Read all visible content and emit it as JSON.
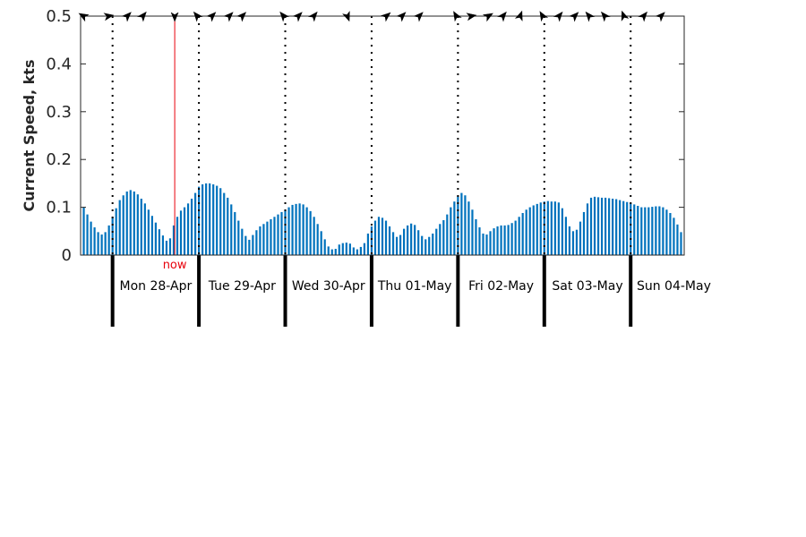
{
  "chart_data": {
    "type": "bar",
    "ylabel": "Current Speed, kts",
    "ylim": [
      0,
      0.5
    ],
    "yticks": [
      "0",
      "0.1",
      "0.2",
      "0.3",
      "0.4",
      "0.5"
    ],
    "bar_color": "#0072bd",
    "now_color": "#e8000b",
    "now_label": "now",
    "now_position_days": 1.72,
    "days": [
      {
        "label": "Mon 28-Apr",
        "start": 1
      },
      {
        "label": "Tue 29-Apr",
        "start": 2
      },
      {
        "label": "Wed 30-Apr",
        "start": 3
      },
      {
        "label": "Thu 01-May",
        "start": 4
      },
      {
        "label": "Fri 02-May",
        "start": 5
      },
      {
        "label": "Sat 03-May",
        "start": 6
      },
      {
        "label": "Sun 04-May",
        "start": 7
      }
    ],
    "x_range_days": [
      0.63,
      7.62
    ],
    "step_hours": 1,
    "start_hours": 15,
    "values": [
      0.113,
      0.1,
      0.085,
      0.07,
      0.058,
      0.048,
      0.043,
      0.048,
      0.062,
      0.08,
      0.098,
      0.115,
      0.125,
      0.133,
      0.136,
      0.133,
      0.127,
      0.118,
      0.108,
      0.095,
      0.082,
      0.068,
      0.054,
      0.041,
      0.03,
      0.035,
      0.062,
      0.08,
      0.093,
      0.1,
      0.108,
      0.118,
      0.13,
      0.143,
      0.148,
      0.15,
      0.15,
      0.148,
      0.145,
      0.14,
      0.13,
      0.12,
      0.106,
      0.09,
      0.072,
      0.055,
      0.04,
      0.032,
      0.042,
      0.052,
      0.06,
      0.065,
      0.07,
      0.075,
      0.08,
      0.085,
      0.09,
      0.095,
      0.1,
      0.105,
      0.107,
      0.108,
      0.106,
      0.1,
      0.092,
      0.08,
      0.065,
      0.05,
      0.033,
      0.018,
      0.012,
      0.013,
      0.022,
      0.025,
      0.026,
      0.024,
      0.016,
      0.012,
      0.017,
      0.025,
      0.045,
      0.06,
      0.072,
      0.08,
      0.078,
      0.072,
      0.06,
      0.048,
      0.038,
      0.042,
      0.055,
      0.062,
      0.066,
      0.063,
      0.052,
      0.04,
      0.033,
      0.038,
      0.045,
      0.055,
      0.065,
      0.073,
      0.085,
      0.1,
      0.112,
      0.123,
      0.13,
      0.125,
      0.112,
      0.095,
      0.075,
      0.058,
      0.045,
      0.043,
      0.05,
      0.056,
      0.06,
      0.062,
      0.062,
      0.063,
      0.067,
      0.072,
      0.08,
      0.088,
      0.095,
      0.1,
      0.104,
      0.107,
      0.11,
      0.112,
      0.113,
      0.112,
      0.112,
      0.11,
      0.098,
      0.08,
      0.06,
      0.05,
      0.053,
      0.07,
      0.09,
      0.108,
      0.12,
      0.122,
      0.121,
      0.12,
      0.12,
      0.119,
      0.118,
      0.117,
      0.115,
      0.113,
      0.111,
      0.109,
      0.106,
      0.103,
      0.1,
      0.1,
      0.1,
      0.101,
      0.102,
      0.102,
      0.1,
      0.095,
      0.088,
      0.078,
      0.064,
      0.048,
      0.032,
      0.02,
      0.015,
      0.026
    ],
    "arrows": [
      {
        "at_days": 0.665,
        "direction_deg": 300
      },
      {
        "at_days": 0.95,
        "direction_deg": 80
      },
      {
        "at_days": 1.17,
        "direction_deg": 45
      },
      {
        "at_days": 1.35,
        "direction_deg": 40
      },
      {
        "at_days": 1.72,
        "direction_deg": 180
      },
      {
        "at_days": 1.98,
        "direction_deg": 320
      },
      {
        "at_days": 2.15,
        "direction_deg": 45
      },
      {
        "at_days": 2.35,
        "direction_deg": 45
      },
      {
        "at_days": 2.5,
        "direction_deg": 45
      },
      {
        "at_days": 2.98,
        "direction_deg": 320
      },
      {
        "at_days": 3.15,
        "direction_deg": 45
      },
      {
        "at_days": 3.33,
        "direction_deg": 40
      },
      {
        "at_days": 3.72,
        "direction_deg": 160
      },
      {
        "at_days": 4.17,
        "direction_deg": 50
      },
      {
        "at_days": 4.35,
        "direction_deg": 45
      },
      {
        "at_days": 4.55,
        "direction_deg": 45
      },
      {
        "at_days": 4.98,
        "direction_deg": 330
      },
      {
        "at_days": 5.15,
        "direction_deg": 80
      },
      {
        "at_days": 5.35,
        "direction_deg": 60
      },
      {
        "at_days": 5.52,
        "direction_deg": 40
      },
      {
        "at_days": 5.72,
        "direction_deg": 20
      },
      {
        "at_days": 5.98,
        "direction_deg": 330
      },
      {
        "at_days": 6.17,
        "direction_deg": 40
      },
      {
        "at_days": 6.35,
        "direction_deg": 45
      },
      {
        "at_days": 6.52,
        "direction_deg": 320
      },
      {
        "at_days": 6.7,
        "direction_deg": 320
      },
      {
        "at_days": 6.92,
        "direction_deg": 340
      },
      {
        "at_days": 7.15,
        "direction_deg": 40
      },
      {
        "at_days": 7.35,
        "direction_deg": 45
      }
    ]
  }
}
